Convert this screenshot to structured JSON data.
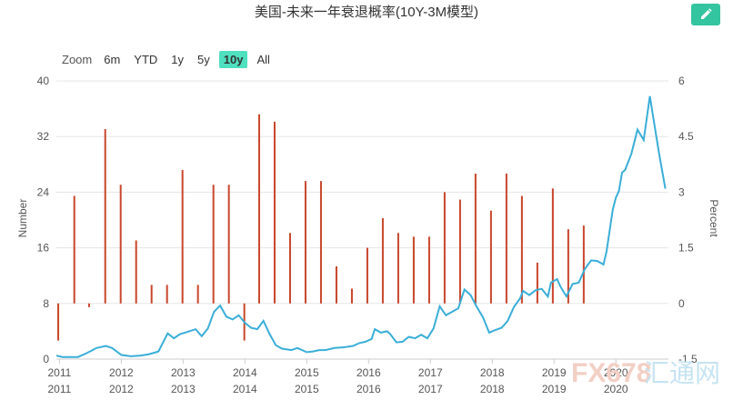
{
  "chart_data": {
    "type": "bar+line",
    "title": "美国-未来一年衰退概率(10Y-3M模型)",
    "y_left": {
      "label": "Number",
      "ticks": [
        0,
        8,
        16,
        24,
        32,
        40
      ],
      "range": [
        0,
        40
      ]
    },
    "y_right": {
      "label": "Percent",
      "ticks": [
        "-1.5",
        "0",
        "1.5",
        "3",
        "4.5",
        "6"
      ],
      "range": [
        -1.5,
        6
      ]
    },
    "x_ticks_top": [
      "2011",
      "2012",
      "2013",
      "2014",
      "2015",
      "2016",
      "2017",
      "2018",
      "2019",
      "2020"
    ],
    "x_ticks_bottom": [
      "2011",
      "2012",
      "2013",
      "2014",
      "2015",
      "2016",
      "2017",
      "2018",
      "2019",
      "2020"
    ],
    "x_range": [
      2010.95,
      2020.85
    ],
    "bar_color": "#c8462c",
    "line_color": "#3aaed8",
    "bars_percent": [
      [
        2010.98,
        -1.0
      ],
      [
        2011.24,
        2.9
      ],
      [
        2011.48,
        -0.1
      ],
      [
        2011.74,
        4.7
      ],
      [
        2011.99,
        3.2
      ],
      [
        2012.24,
        1.7
      ],
      [
        2012.49,
        0.5
      ],
      [
        2012.74,
        0.5
      ],
      [
        2012.99,
        3.6
      ],
      [
        2013.24,
        0.5
      ],
      [
        2013.49,
        3.2
      ],
      [
        2013.74,
        3.2
      ],
      [
        2013.99,
        -1.0
      ],
      [
        2014.23,
        5.1
      ],
      [
        2014.48,
        4.9
      ],
      [
        2014.73,
        1.9
      ],
      [
        2014.98,
        3.3
      ],
      [
        2015.23,
        3.3
      ],
      [
        2015.48,
        1.0
      ],
      [
        2015.73,
        0.4
      ],
      [
        2015.98,
        1.5
      ],
      [
        2016.23,
        2.3
      ],
      [
        2016.48,
        1.9
      ],
      [
        2016.73,
        1.8
      ],
      [
        2016.98,
        1.8
      ],
      [
        2017.23,
        3.0
      ],
      [
        2017.48,
        2.8
      ],
      [
        2017.73,
        3.5
      ],
      [
        2017.98,
        2.5
      ],
      [
        2018.23,
        3.5
      ],
      [
        2018.48,
        2.9
      ],
      [
        2018.73,
        1.1
      ],
      [
        2018.98,
        3.1
      ],
      [
        2019.23,
        2.0
      ],
      [
        2019.48,
        2.1
      ]
    ],
    "line_number": [
      [
        2010.95,
        0.5
      ],
      [
        2011.05,
        0.3
      ],
      [
        2011.15,
        0.3
      ],
      [
        2011.3,
        0.3
      ],
      [
        2011.45,
        0.9
      ],
      [
        2011.6,
        1.6
      ],
      [
        2011.75,
        1.9
      ],
      [
        2011.85,
        1.6
      ],
      [
        2012.0,
        0.6
      ],
      [
        2012.15,
        0.4
      ],
      [
        2012.3,
        0.5
      ],
      [
        2012.45,
        0.7
      ],
      [
        2012.6,
        1.1
      ],
      [
        2012.75,
        3.7
      ],
      [
        2012.85,
        3.0
      ],
      [
        2012.95,
        3.6
      ],
      [
        2013.1,
        4.0
      ],
      [
        2013.2,
        4.3
      ],
      [
        2013.3,
        3.3
      ],
      [
        2013.4,
        4.4
      ],
      [
        2013.5,
        6.8
      ],
      [
        2013.6,
        7.7
      ],
      [
        2013.7,
        6.1
      ],
      [
        2013.8,
        5.7
      ],
      [
        2013.9,
        6.3
      ],
      [
        2014.0,
        5.2
      ],
      [
        2014.1,
        4.5
      ],
      [
        2014.2,
        4.3
      ],
      [
        2014.3,
        5.5
      ],
      [
        2014.4,
        3.6
      ],
      [
        2014.5,
        2.0
      ],
      [
        2014.6,
        1.5
      ],
      [
        2014.75,
        1.3
      ],
      [
        2014.85,
        1.6
      ],
      [
        2015.0,
        1.0
      ],
      [
        2015.1,
        1.1
      ],
      [
        2015.2,
        1.3
      ],
      [
        2015.3,
        1.3
      ],
      [
        2015.45,
        1.6
      ],
      [
        2015.6,
        1.7
      ],
      [
        2015.75,
        1.9
      ],
      [
        2015.85,
        2.3
      ],
      [
        2015.95,
        2.5
      ],
      [
        2016.05,
        2.9
      ],
      [
        2016.1,
        4.3
      ],
      [
        2016.2,
        3.8
      ],
      [
        2016.3,
        4.0
      ],
      [
        2016.35,
        3.6
      ],
      [
        2016.45,
        2.4
      ],
      [
        2016.55,
        2.5
      ],
      [
        2016.65,
        3.2
      ],
      [
        2016.75,
        3.0
      ],
      [
        2016.85,
        3.5
      ],
      [
        2016.95,
        3.0
      ],
      [
        2017.05,
        4.4
      ],
      [
        2017.15,
        7.6
      ],
      [
        2017.25,
        6.3
      ],
      [
        2017.35,
        6.8
      ],
      [
        2017.45,
        7.3
      ],
      [
        2017.55,
        10.0
      ],
      [
        2017.65,
        9.2
      ],
      [
        2017.75,
        7.5
      ],
      [
        2017.85,
        6.0
      ],
      [
        2017.95,
        3.8
      ],
      [
        2018.05,
        4.2
      ],
      [
        2018.15,
        4.5
      ],
      [
        2018.25,
        5.5
      ],
      [
        2018.35,
        7.5
      ],
      [
        2018.45,
        8.7
      ],
      [
        2018.5,
        9.8
      ],
      [
        2018.6,
        9.2
      ],
      [
        2018.7,
        9.9
      ],
      [
        2018.8,
        10.1
      ],
      [
        2018.9,
        9.0
      ],
      [
        2018.95,
        11.0
      ],
      [
        2019.05,
        11.5
      ],
      [
        2019.1,
        10.5
      ],
      [
        2019.2,
        9.0
      ],
      [
        2019.3,
        10.8
      ],
      [
        2019.4,
        11.0
      ],
      [
        2019.5,
        13.0
      ],
      [
        2019.6,
        14.2
      ],
      [
        2019.7,
        14.1
      ],
      [
        2019.8,
        13.6
      ],
      [
        2019.85,
        15.5
      ],
      [
        2019.95,
        21.5
      ],
      [
        2020.0,
        23.2
      ],
      [
        2020.05,
        24.2
      ],
      [
        2020.1,
        26.8
      ],
      [
        2020.15,
        27.2
      ],
      [
        2020.25,
        29.5
      ],
      [
        2020.35,
        33.0
      ],
      [
        2020.45,
        31.5
      ],
      [
        2020.55,
        37.8
      ],
      [
        2020.6,
        35.0
      ],
      [
        2020.7,
        29.5
      ],
      [
        2020.8,
        24.5
      ]
    ]
  },
  "zoom": {
    "label": "Zoom",
    "buttons": [
      "6m",
      "YTD",
      "1y",
      "5y",
      "10y",
      "All"
    ],
    "active": "10y"
  },
  "watermark": {
    "text_latin": "FX678",
    "text_cn": "汇通网"
  },
  "edit_icon": "pencil-icon"
}
